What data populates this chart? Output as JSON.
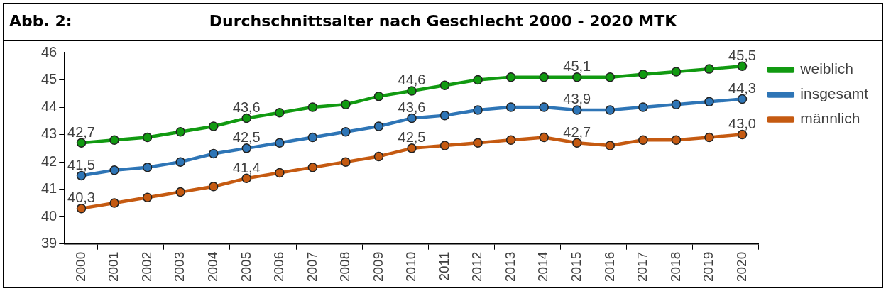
{
  "chart_data": {
    "type": "line",
    "title": "Durchschnittsalter nach Geschlecht 2000 - 2020 MTK",
    "annotations": [
      "Abb. 2:"
    ],
    "categories": [
      "2000",
      "2001",
      "2002",
      "2003",
      "2004",
      "2005",
      "2006",
      "2007",
      "2008",
      "2009",
      "2010",
      "2011",
      "2012",
      "2013",
      "2014",
      "2015",
      "2016",
      "2017",
      "2018",
      "2019",
      "2020"
    ],
    "series": [
      {
        "name": "weiblich",
        "color": "#119a11",
        "values": [
          42.7,
          42.8,
          42.9,
          43.1,
          43.3,
          43.6,
          43.8,
          44.0,
          44.1,
          44.4,
          44.6,
          44.8,
          45.0,
          45.1,
          45.1,
          45.1,
          45.1,
          45.2,
          45.3,
          45.4,
          45.5
        ],
        "value_labels": [
          "42,7",
          null,
          null,
          null,
          null,
          "43,6",
          null,
          null,
          null,
          null,
          "44,6",
          null,
          null,
          null,
          null,
          "45,1",
          null,
          null,
          null,
          null,
          "45,5"
        ]
      },
      {
        "name": "insgesamt",
        "color": "#2e75b6",
        "values": [
          41.5,
          41.7,
          41.8,
          42.0,
          42.3,
          42.5,
          42.7,
          42.9,
          43.1,
          43.3,
          43.6,
          43.7,
          43.9,
          44.0,
          44.0,
          43.9,
          43.9,
          44.0,
          44.1,
          44.2,
          44.3
        ],
        "value_labels": [
          "41,5",
          null,
          null,
          null,
          null,
          "42,5",
          null,
          null,
          null,
          null,
          "43,6",
          null,
          null,
          null,
          null,
          "43,9",
          null,
          null,
          null,
          null,
          "44,3"
        ]
      },
      {
        "name": "männlich",
        "color": "#c55a11",
        "values": [
          40.3,
          40.5,
          40.7,
          40.9,
          41.1,
          41.4,
          41.6,
          41.8,
          42.0,
          42.2,
          42.5,
          42.6,
          42.7,
          42.8,
          42.9,
          42.7,
          42.6,
          42.8,
          42.8,
          42.9,
          43.0
        ],
        "value_labels": [
          "40,3",
          null,
          null,
          null,
          null,
          "41,4",
          null,
          null,
          null,
          null,
          "42,5",
          null,
          null,
          null,
          null,
          "42,7",
          null,
          null,
          null,
          null,
          "43,0"
        ]
      }
    ],
    "ylim": [
      39,
      46
    ],
    "yticks": [
      39,
      40,
      41,
      42,
      43,
      44,
      45,
      46
    ],
    "grid": false,
    "legend": "right",
    "marker": "circle",
    "line_style": "solid"
  }
}
